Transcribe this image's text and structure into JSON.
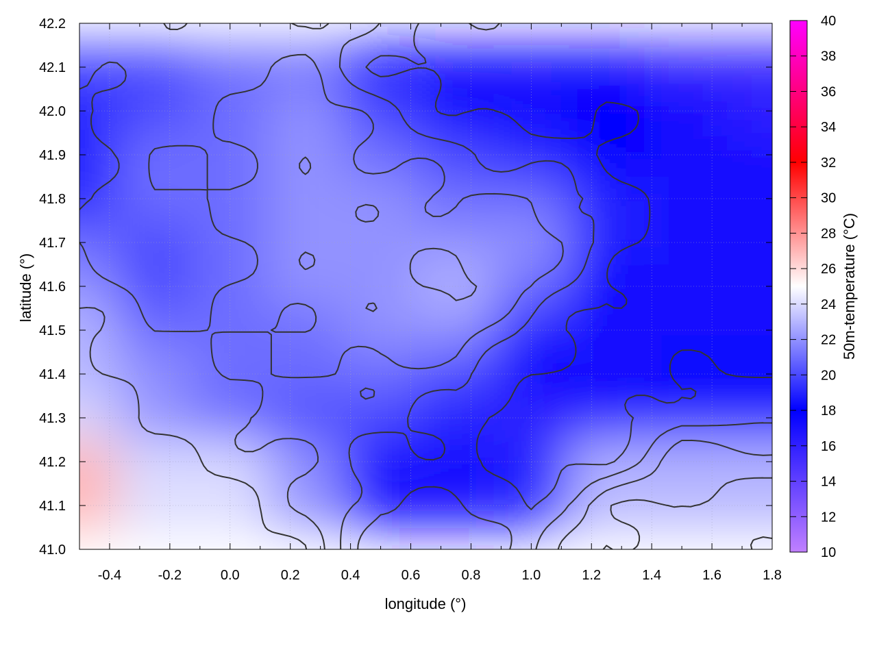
{
  "chart_data": {
    "type": "heatmap",
    "title": "",
    "xlabel": "longitude (°)",
    "ylabel": "latitude (°)",
    "colorbar_label": "50m-temperature (°C)",
    "xlim": [
      -0.5,
      1.8
    ],
    "ylim": [
      41.0,
      42.2
    ],
    "clim": [
      10,
      40
    ],
    "x_ticks": [
      "-0.4",
      "-0.2",
      "0.0",
      "0.2",
      "0.4",
      "0.6",
      "0.8",
      "1.0",
      "1.2",
      "1.4",
      "1.6",
      "1.8"
    ],
    "y_ticks": [
      "41.0",
      "41.1",
      "41.2",
      "41.3",
      "41.4",
      "41.5",
      "41.6",
      "41.7",
      "41.8",
      "41.9",
      "42.0",
      "42.1",
      "42.2"
    ],
    "colorbar_ticks": [
      "10",
      "12",
      "14",
      "16",
      "18",
      "20",
      "22",
      "24",
      "26",
      "28",
      "30",
      "32",
      "34",
      "36",
      "38",
      "40"
    ],
    "grid": true,
    "contours": true,
    "colormap": [
      {
        "value": 10,
        "color": "#c080ff"
      },
      {
        "value": 18,
        "color": "#0000ff"
      },
      {
        "value": 25,
        "color": "#ffffff"
      },
      {
        "value": 32,
        "color": "#ff0000"
      },
      {
        "value": 40,
        "color": "#ff00ff"
      }
    ],
    "grid_lon": [
      -0.5,
      -0.25,
      0.0,
      0.25,
      0.5,
      0.75,
      1.0,
      1.25,
      1.5,
      1.8
    ],
    "grid_lat": [
      42.2,
      42.1,
      42.0,
      41.9,
      41.8,
      41.7,
      41.6,
      41.5,
      41.4,
      41.3,
      41.2,
      41.1,
      41.0
    ],
    "values": [
      [
        20,
        20,
        20,
        20,
        19,
        18,
        17,
        17,
        16,
        16
      ],
      [
        20,
        20,
        21,
        21,
        18,
        17,
        17,
        17,
        16,
        16
      ],
      [
        19,
        20,
        21,
        22,
        20,
        18,
        17,
        18,
        17,
        16
      ],
      [
        19,
        21,
        21,
        22,
        21,
        20,
        19,
        18,
        17,
        17
      ],
      [
        19,
        21,
        21,
        22,
        22,
        21,
        21,
        19,
        17,
        17
      ],
      [
        21,
        20,
        21,
        22,
        22,
        22,
        22,
        19,
        17,
        17
      ],
      [
        22,
        20,
        21,
        22,
        22,
        23,
        21,
        18,
        17,
        17
      ],
      [
        23,
        21,
        21,
        21,
        22,
        22,
        19,
        17,
        17,
        17
      ],
      [
        23,
        22,
        21,
        21,
        21,
        20,
        18,
        17,
        18,
        18
      ],
      [
        24,
        22,
        21,
        20,
        20,
        19,
        16,
        17,
        19,
        19
      ],
      [
        24,
        23,
        22,
        21,
        19,
        19,
        17,
        18,
        22,
        22
      ],
      [
        27,
        24,
        23,
        21,
        18,
        18,
        18,
        22,
        23,
        23
      ],
      [
        27,
        24,
        24,
        22,
        17,
        17,
        19,
        23,
        23,
        23
      ]
    ]
  }
}
